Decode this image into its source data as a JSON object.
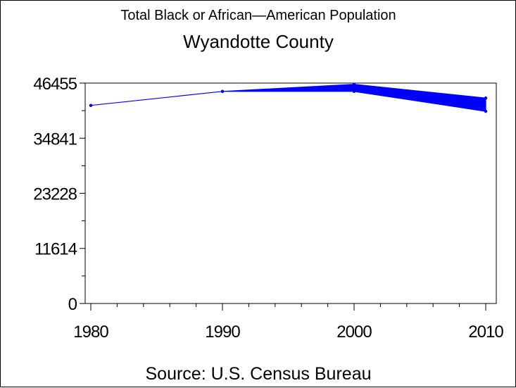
{
  "chart_data": {
    "type": "line",
    "title": "Total Black or African—American Population",
    "subtitle": "Wyandotte County",
    "source": "Source: U.S. Census Bureau",
    "xlabel": "",
    "ylabel": "",
    "x_ticks": [
      "1980",
      "1990",
      "2000",
      "2010"
    ],
    "y_ticks": [
      "0",
      "11614",
      "23228",
      "34841",
      "46455"
    ],
    "ylim": [
      0,
      46455
    ],
    "xlim": [
      1980,
      2010
    ],
    "grid": false,
    "series": [
      {
        "type": "band",
        "color": "#0000ff",
        "points": [
          {
            "x": 1980,
            "low": 41750,
            "high": 41750
          },
          {
            "x": 1990,
            "low": 44700,
            "high": 44700
          },
          {
            "x": 2000,
            "low": 44700,
            "high": 46200
          },
          {
            "x": 2010,
            "low": 40500,
            "high": 43300
          }
        ]
      }
    ]
  }
}
